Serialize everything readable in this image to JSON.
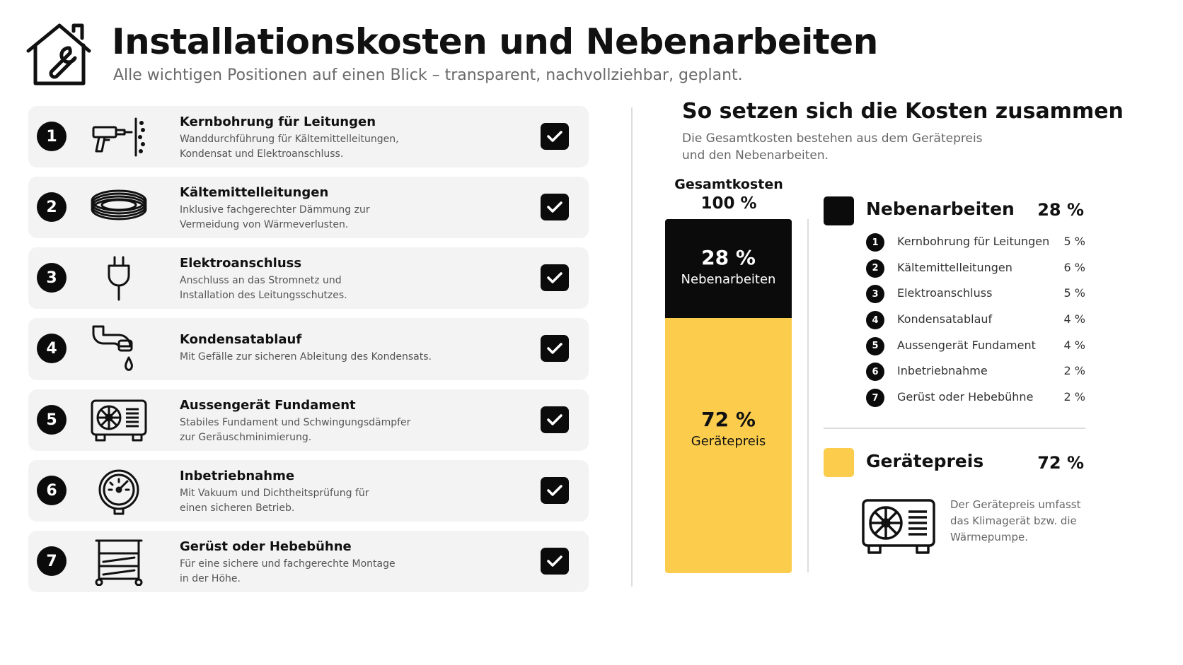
{
  "header": {
    "title": "Installationskosten und Nebenarbeiten",
    "subtitle": "Alle wichtigen Positionen auf einen Blick – transparent, nachvollziehbar, geplant.",
    "logo_icon": "house-wrench-icon"
  },
  "items": [
    {
      "number": "1",
      "title": "Kernbohrung für Leitungen",
      "description": "Wanddurchführung für Kältemittelleitungen, Kondensat und Elektroanschluss.",
      "icon": "drill-icon"
    },
    {
      "number": "2",
      "title": "Kältemittelleitungen",
      "description": "Inklusive fachgerechter Dämmung zur Vermeidung von Wärmeverlusten.",
      "icon": "coiled-pipe-icon"
    },
    {
      "number": "3",
      "title": "Elektroanschluss",
      "description": "Anschluss an das Stromnetz und Installation des Leitungsschutzes.",
      "icon": "plug-icon"
    },
    {
      "number": "4",
      "title": "Kondensatablauf",
      "description": "Mit Gefälle zur sicheren Ableitung des Kondensats.",
      "icon": "drain-pipe-icon"
    },
    {
      "number": "5",
      "title": "Aussengerät Fundament",
      "description": "Stabiles Fundament und Schwingungsdämpfer zur Geräuschminimierung.",
      "icon": "outdoor-unit-icon"
    },
    {
      "number": "6",
      "title": "Inbetriebnahme",
      "description": "Mit Vakuum und Dichtheitsprüfung für einen sicheren Betrieb.",
      "icon": "pressure-gauge-icon"
    },
    {
      "number": "7",
      "title": "Gerüst oder Hebebühne",
      "description": "Für eine sichere und fachgerechte Montage in der Höhe.",
      "icon": "scaffold-icon"
    }
  ],
  "summary": {
    "title": "So setzen sich die Kosten zusammen",
    "subtitle": "Die Gesamtkosten bestehen aus dem Gerätepreis und den Nebenarbeiten.",
    "total_label": "Gesamtkosten",
    "total_value": "100 %"
  },
  "chart_data": {
    "type": "bar",
    "stacked": true,
    "title": "Gesamtkosten",
    "total": "100 %",
    "categories": [
      "Gesamtkosten"
    ],
    "series": [
      {
        "name": "Nebenarbeiten",
        "values": [
          28
        ],
        "label": "28 %",
        "color": "#0b0b0b"
      },
      {
        "name": "Gerätepreis",
        "values": [
          72
        ],
        "label": "72 %",
        "color": "#fccd4d"
      }
    ],
    "breakdown": {
      "name": "Nebenarbeiten",
      "items": [
        {
          "number": "1",
          "label": "Kernbohrung für Leitungen",
          "value": 5,
          "text": "5 %"
        },
        {
          "number": "2",
          "label": "Kältemittelleitungen",
          "value": 6,
          "text": "6 %"
        },
        {
          "number": "3",
          "label": "Elektroanschluss",
          "value": 5,
          "text": "5 %"
        },
        {
          "number": "4",
          "label": "Kondensatablauf",
          "value": 4,
          "text": "4 %"
        },
        {
          "number": "5",
          "label": "Aussengerät Fundament",
          "value": 4,
          "text": "4 %"
        },
        {
          "number": "6",
          "label": "Inbetriebnahme",
          "value": 2,
          "text": "2 %"
        },
        {
          "number": "7",
          "label": "Gerüst oder Hebebühne",
          "value": 2,
          "text": "2 %"
        }
      ]
    }
  },
  "legend": {
    "nebenarbeiten": {
      "label": "Nebenarbeiten",
      "pct": "28 %"
    },
    "geraetepreis": {
      "label": "Gerätepreis",
      "pct": "72 %",
      "note": "Der Gerätepreis umfasst das Klimagerät bzw. die Wärmepumpe.",
      "icon": "outdoor-unit-icon"
    }
  },
  "colors": {
    "dark": "#0b0b0b",
    "accent": "#fccd4d",
    "card_bg": "#f3f3f4"
  }
}
